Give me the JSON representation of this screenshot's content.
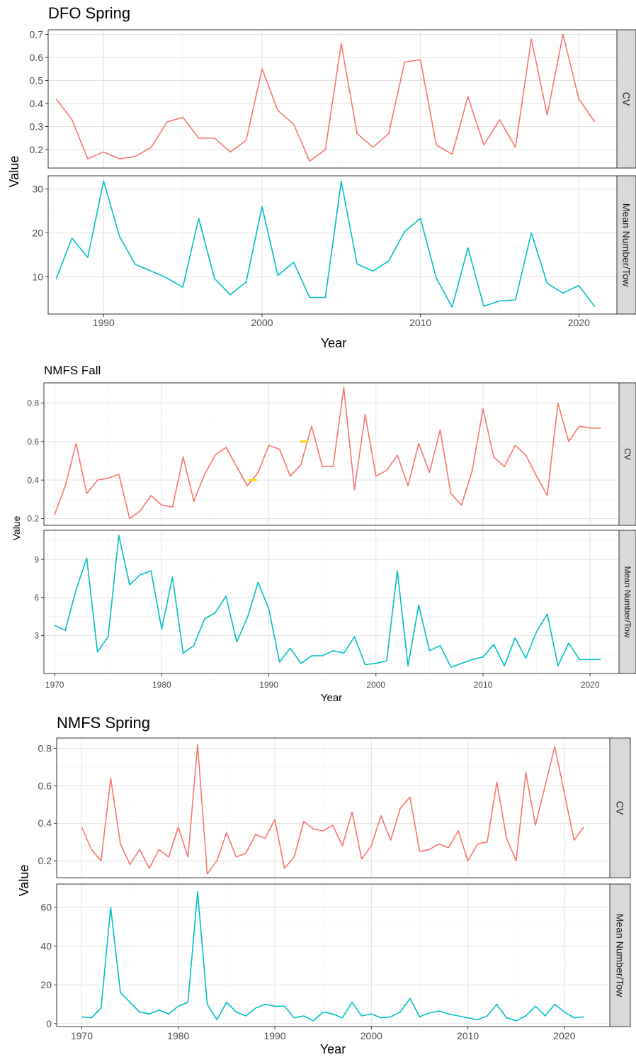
{
  "chart_data": [
    {
      "type": "line",
      "title": "DFO Spring",
      "xlabel": "Year",
      "ylabel": "Value",
      "xlim": [
        1986.5,
        2022.4
      ],
      "x_ticks": [
        1990,
        2000,
        2010,
        2020
      ],
      "grid": true,
      "panels": [
        {
          "strip": "CV",
          "color": "#F8766D",
          "ylim": [
            0.12,
            0.72
          ],
          "y_ticks": [
            0.2,
            0.3,
            0.4,
            0.5,
            0.6,
            0.7
          ],
          "x": [
            1987,
            1988,
            1989,
            1990,
            1991,
            1992,
            1993,
            1994,
            1995,
            1996,
            1997,
            1998,
            1999,
            2000,
            2001,
            2002,
            2003,
            2004,
            2005,
            2006,
            2007,
            2008,
            2009,
            2010,
            2011,
            2012,
            2013,
            2014,
            2015,
            2016,
            2017,
            2018,
            2019,
            2020,
            2021
          ],
          "values": [
            0.42,
            0.33,
            0.16,
            0.19,
            0.16,
            0.17,
            0.21,
            0.32,
            0.34,
            0.25,
            0.25,
            0.19,
            0.24,
            0.55,
            0.37,
            0.31,
            0.15,
            0.2,
            0.66,
            0.27,
            0.21,
            0.27,
            0.58,
            0.59,
            0.22,
            0.18,
            0.43,
            0.22,
            0.33,
            0.21,
            0.68,
            0.35,
            0.7,
            0.42,
            0.32
          ]
        },
        {
          "strip": "Mean Number/Tow",
          "color": "#00BFC4",
          "ylim": [
            1.5,
            33
          ],
          "y_ticks": [
            10,
            20,
            30
          ],
          "x": [
            1987,
            1988,
            1989,
            1990,
            1991,
            1992,
            1993,
            1994,
            1995,
            1996,
            1997,
            1998,
            1999,
            2000,
            2001,
            2002,
            2003,
            2004,
            2005,
            2006,
            2007,
            2008,
            2009,
            2010,
            2011,
            2012,
            2013,
            2014,
            2015,
            2016,
            2017,
            2018,
            2019,
            2020,
            2021
          ],
          "values": [
            9.5,
            18.8,
            14.4,
            31.8,
            19.2,
            12.8,
            11.3,
            9.7,
            7.6,
            23.3,
            9.6,
            5.9,
            8.8,
            26,
            10.3,
            13.3,
            5.3,
            5.3,
            31.7,
            12.9,
            11.3,
            13.6,
            20.3,
            23.3,
            9.7,
            3.1,
            16.6,
            3.3,
            4.5,
            4.7,
            20,
            8.5,
            6.3,
            8,
            3.2
          ]
        }
      ]
    },
    {
      "type": "line",
      "title": "NMFS Fall",
      "xlabel": "Year",
      "ylabel": "Value",
      "xlim": [
        1969,
        2022.7
      ],
      "x_ticks": [
        1970,
        1980,
        1990,
        2000,
        2010,
        2020
      ],
      "grid": true,
      "panels": [
        {
          "strip": "CV",
          "color": "#F8766D",
          "ylim": [
            0.165,
            0.905
          ],
          "y_ticks": [
            0.2,
            0.4,
            0.6,
            0.8
          ],
          "x": [
            1970,
            1971,
            1972,
            1973,
            1974,
            1975,
            1976,
            1977,
            1978,
            1979,
            1980,
            1981,
            1982,
            1983,
            1984,
            1985,
            1986,
            1987,
            1988,
            1989,
            1990,
            1991,
            1992,
            1993,
            1994,
            1995,
            1996,
            1997,
            1998,
            1999,
            2000,
            2001,
            2002,
            2003,
            2004,
            2005,
            2006,
            2007,
            2008,
            2009,
            2010,
            2011,
            2012,
            2013,
            2014,
            2015,
            2016,
            2017,
            2018,
            2019,
            2020,
            2021
          ],
          "values": [
            0.22,
            0.37,
            0.59,
            0.33,
            0.4,
            0.41,
            0.43,
            0.2,
            0.24,
            0.32,
            0.27,
            0.26,
            0.52,
            0.29,
            0.43,
            0.53,
            0.57,
            0.47,
            0.37,
            0.44,
            0.58,
            0.56,
            0.42,
            0.48,
            0.68,
            0.47,
            0.47,
            0.88,
            0.35,
            0.74,
            0.42,
            0.45,
            0.53,
            0.37,
            0.59,
            0.44,
            0.66,
            0.33,
            0.27,
            0.45,
            0.77,
            0.52,
            0.47,
            0.58,
            0.53,
            0.42,
            0.32,
            0.8,
            0.6,
            0.68,
            0.67,
            0.67
          ],
          "markers": [
            {
              "x": 1988.5,
              "y": 0.4,
              "color": "#FFD700"
            },
            {
              "x": 1993.3,
              "y": 0.6,
              "color": "#FFD700"
            }
          ]
        },
        {
          "strip": "Mean Number/Tow",
          "color": "#00BFC4",
          "ylim": [
            0,
            11.3
          ],
          "y_ticks": [
            3,
            6,
            9
          ],
          "x": [
            1970,
            1971,
            1972,
            1973,
            1974,
            1975,
            1976,
            1977,
            1978,
            1979,
            1980,
            1981,
            1982,
            1983,
            1984,
            1985,
            1986,
            1987,
            1988,
            1989,
            1990,
            1991,
            1992,
            1993,
            1994,
            1995,
            1996,
            1997,
            1998,
            1999,
            2000,
            2001,
            2002,
            2003,
            2004,
            2005,
            2006,
            2007,
            2008,
            2009,
            2010,
            2011,
            2012,
            2013,
            2014,
            2015,
            2016,
            2017,
            2018,
            2019,
            2020,
            2021
          ],
          "values": [
            3.8,
            3.4,
            6.6,
            9.1,
            1.7,
            2.9,
            10.9,
            7,
            7.8,
            8.1,
            3.5,
            7.6,
            1.6,
            2.2,
            4.3,
            4.8,
            6.1,
            2.5,
            4.4,
            7.2,
            5.1,
            0.9,
            2,
            0.8,
            1.4,
            1.4,
            1.8,
            1.6,
            2.9,
            0.7,
            0.8,
            1,
            8.1,
            0.6,
            5.4,
            1.8,
            2.2,
            0.5,
            0.8,
            1.1,
            1.3,
            2.3,
            0.6,
            2.8,
            1.2,
            3.3,
            4.7,
            0.6,
            2.4,
            1.1,
            1.1,
            1.1
          ]
        }
      ]
    },
    {
      "type": "line",
      "title": "NMFS Spring",
      "xlabel": "Year",
      "ylabel": "Value",
      "xlim": [
        1967.4,
        2024.7
      ],
      "x_ticks": [
        1970,
        1980,
        1990,
        2000,
        2010,
        2020
      ],
      "grid": true,
      "panels": [
        {
          "strip": "CV",
          "color": "#F8766D",
          "ylim": [
            0.11,
            0.855
          ],
          "y_ticks": [
            0.2,
            0.4,
            0.6,
            0.8
          ],
          "x": [
            1970,
            1971,
            1972,
            1973,
            1974,
            1975,
            1976,
            1977,
            1978,
            1979,
            1980,
            1981,
            1982,
            1983,
            1984,
            1985,
            1986,
            1987,
            1988,
            1989,
            1990,
            1991,
            1992,
            1993,
            1994,
            1995,
            1996,
            1997,
            1998,
            1999,
            2000,
            2001,
            2002,
            2003,
            2004,
            2005,
            2006,
            2007,
            2008,
            2009,
            2010,
            2011,
            2012,
            2013,
            2014,
            2015,
            2016,
            2017,
            2018,
            2019,
            2020,
            2021,
            2022
          ],
          "values": [
            0.38,
            0.26,
            0.2,
            0.64,
            0.29,
            0.18,
            0.26,
            0.16,
            0.26,
            0.22,
            0.38,
            0.22,
            0.82,
            0.13,
            0.2,
            0.35,
            0.22,
            0.24,
            0.34,
            0.32,
            0.42,
            0.16,
            0.22,
            0.41,
            0.37,
            0.36,
            0.39,
            0.28,
            0.46,
            0.21,
            0.28,
            0.44,
            0.31,
            0.48,
            0.54,
            0.25,
            0.26,
            0.29,
            0.27,
            0.36,
            0.2,
            0.29,
            0.3,
            0.62,
            0.32,
            0.2,
            0.67,
            0.39,
            0.6,
            0.81,
            0.56,
            0.31,
            0.38
          ]
        },
        {
          "strip": "Mean Number/Tow",
          "color": "#00BFC4",
          "ylim": [
            -1.5,
            72
          ],
          "y_ticks": [
            0,
            20,
            40,
            60
          ],
          "x": [
            1970,
            1971,
            1972,
            1973,
            1974,
            1975,
            1976,
            1977,
            1978,
            1979,
            1980,
            1981,
            1982,
            1983,
            1984,
            1985,
            1986,
            1987,
            1988,
            1989,
            1990,
            1991,
            1992,
            1993,
            1994,
            1995,
            1996,
            1997,
            1998,
            1999,
            2000,
            2001,
            2002,
            2003,
            2004,
            2005,
            2006,
            2007,
            2008,
            2009,
            2010,
            2011,
            2012,
            2013,
            2014,
            2015,
            2016,
            2017,
            2018,
            2019,
            2020,
            2021,
            2022
          ],
          "values": [
            3.5,
            3,
            8,
            60,
            16,
            11,
            6,
            5,
            7,
            5,
            9,
            11,
            68,
            10,
            2,
            11,
            6,
            4,
            8,
            10,
            9,
            9,
            3,
            4,
            1.5,
            6,
            5,
            3,
            11,
            4,
            5,
            3,
            3.5,
            6,
            13,
            3.5,
            5.5,
            6.5,
            5,
            4,
            3,
            2,
            4,
            10,
            3,
            1.5,
            4,
            9,
            4,
            10,
            6,
            3,
            3.5
          ]
        }
      ]
    }
  ]
}
